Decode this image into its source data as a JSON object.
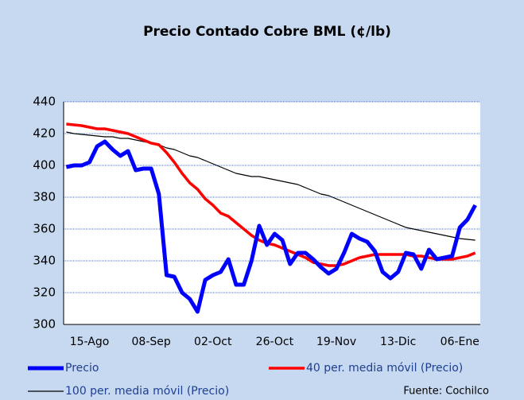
{
  "chart_data": {
    "type": "line",
    "title": "Precio Contado Cobre BML (¢/lb)",
    "source": "Fuente: Cochilco",
    "categories": [
      null,
      null,
      null,
      "15-Ago",
      null,
      null,
      null,
      null,
      null,
      null,
      null,
      "08-Sep",
      null,
      null,
      null,
      null,
      null,
      null,
      null,
      "02-Oct",
      null,
      null,
      null,
      null,
      null,
      null,
      null,
      "26-Oct",
      null,
      null,
      null,
      null,
      null,
      null,
      null,
      "19-Nov",
      null,
      null,
      null,
      null,
      null,
      null,
      null,
      "13-Dic",
      null,
      null,
      null,
      null,
      null,
      null,
      null,
      "06-Ene",
      null,
      null
    ],
    "series": [
      {
        "name": "Precio",
        "color": "#0000ff",
        "width": 5,
        "values": [
          399,
          400,
          400,
          402,
          412,
          415,
          410,
          406,
          409,
          397,
          398,
          398,
          382,
          331,
          330,
          320,
          316,
          308,
          328,
          331,
          333,
          341,
          325,
          325,
          340,
          362,
          350,
          357,
          353,
          338,
          345,
          345,
          341,
          336,
          332,
          335,
          345,
          357,
          354,
          352,
          346,
          333,
          329,
          333,
          345,
          344,
          335,
          347,
          341,
          342,
          343,
          361,
          366,
          375
        ]
      },
      {
        "name": "40 per. media móvil (Precio)",
        "color": "#ff0000",
        "width": 3.5,
        "values": [
          426,
          425.5,
          425,
          424,
          423,
          423,
          422,
          421,
          420,
          418,
          416,
          414,
          413,
          408,
          402,
          395,
          389,
          385,
          379,
          375,
          370,
          368,
          364,
          360,
          356,
          353,
          351,
          350,
          348,
          346,
          344,
          342,
          339,
          338,
          337,
          337,
          338,
          340,
          342,
          343,
          344,
          344,
          344,
          344,
          344,
          343,
          343,
          342,
          341,
          341,
          341,
          342,
          343,
          345
        ]
      },
      {
        "name": "100 per. media móvil (Precio)",
        "color": "#000000",
        "width": 1.2,
        "values": [
          421,
          420,
          419.5,
          419,
          418.5,
          418,
          418,
          417,
          417,
          416,
          415,
          414,
          413,
          411,
          410,
          408,
          406,
          405,
          403,
          401,
          399,
          397,
          395,
          394,
          393,
          393,
          392,
          391,
          390,
          389,
          388,
          386,
          384,
          382,
          381,
          379,
          377,
          375,
          373,
          371,
          369,
          367,
          365,
          363,
          361,
          360,
          359,
          358,
          357,
          356,
          355,
          354,
          353.5,
          353
        ]
      }
    ],
    "ylim": [
      300,
      440
    ],
    "yticks": [
      300,
      320,
      340,
      360,
      380,
      400,
      420,
      440
    ],
    "grid": true
  }
}
